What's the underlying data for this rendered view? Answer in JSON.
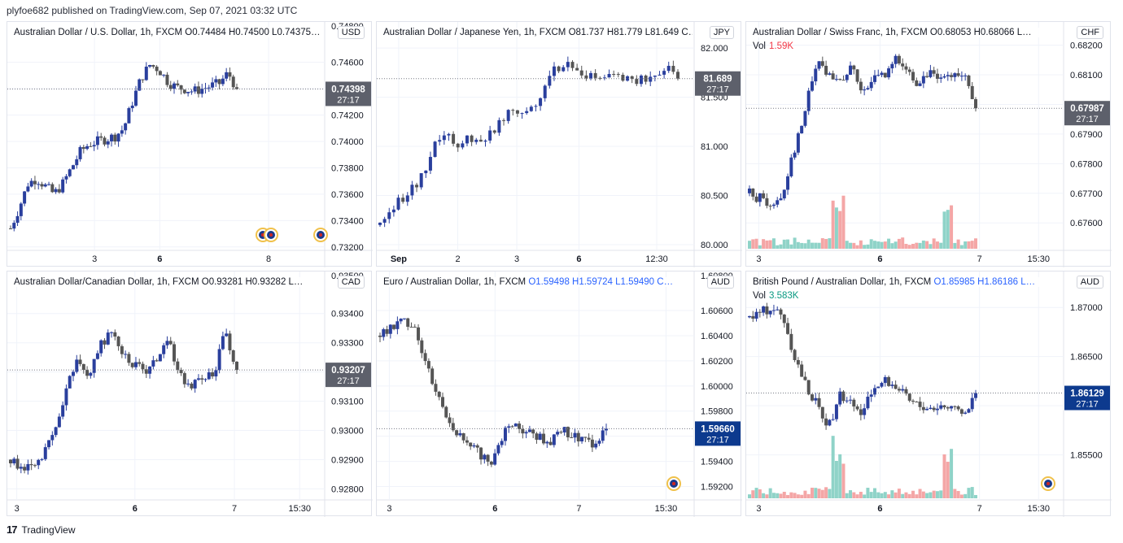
{
  "header": {
    "text": "plyfoe682 published on TradingView.com, Sep 07, 2021 03:32 UTC"
  },
  "footer": {
    "logo": "17",
    "brand": "TradingView"
  },
  "colors": {
    "up": "#2a3f9d",
    "down": "#555555",
    "priceLabelDark": "#5d606b",
    "priceLabelBlue": "#0d3a8e",
    "volUp": "#8fd3c8",
    "volDown": "#f4a6a6",
    "grid": "#f0f3fa"
  },
  "panels": [
    {
      "id": "audusd",
      "legend": {
        "name": "Australian Dollar / U.S. Dollar, 1h, FXCM",
        "ohlc": "O0.74484  H0.74500  L0.74375…"
      },
      "currency": "USD",
      "chart_data": {
        "type": "candlestick",
        "yticks": [
          "0.74600",
          "0.74400",
          "0.74200",
          "0.74000",
          "0.73800",
          "0.73600",
          "0.73400",
          "0.73200"
        ],
        "yhead": "0.74800",
        "ylim": [
          0.7318,
          0.7482
        ],
        "xticks": [
          {
            "label": "3",
            "pos": 0.27
          },
          {
            "label": "6",
            "pos": 0.48,
            "bold": true
          },
          {
            "label": "8",
            "pos": 0.83
          }
        ],
        "last_price": 0.74398,
        "last_label": "0.74398",
        "countdown": "27:17",
        "label_style": "dark",
        "path": [
          0.7334,
          0.735,
          0.7368,
          0.7372,
          0.7366,
          0.736,
          0.7368,
          0.738,
          0.7392,
          0.7398,
          0.74,
          0.7402,
          0.7404,
          0.741,
          0.743,
          0.7448,
          0.7458,
          0.7455,
          0.7446,
          0.7441,
          0.744,
          0.7438,
          0.744,
          0.7442,
          0.7444,
          0.7452,
          0.744
        ],
        "with_volume": false
      }
    },
    {
      "id": "audjpy",
      "legend": {
        "name": "Australian Dollar / Japanese Yen, 1h, FXCM",
        "ohlc": "O81.737  H81.779  L81.649  C…"
      },
      "currency": "JPY",
      "chart_data": {
        "type": "candlestick",
        "yticks": [
          "82.000",
          "81.500",
          "81.000",
          "80.500",
          "80.000"
        ],
        "ylim": [
          79.95,
          82.15
        ],
        "xticks": [
          {
            "label": "Sep",
            "pos": 0.06,
            "bold": true
          },
          {
            "label": "2",
            "pos": 0.25
          },
          {
            "label": "3",
            "pos": 0.44
          },
          {
            "label": "6",
            "pos": 0.64,
            "bold": true
          },
          {
            "label": "12:30",
            "pos": 0.89
          }
        ],
        "last_price": 81.689,
        "last_label": "81.689",
        "countdown": "27:17",
        "label_style": "dark",
        "path": [
          80.2,
          80.4,
          80.5,
          80.62,
          80.95,
          81.15,
          81.0,
          81.1,
          81.05,
          81.2,
          81.4,
          81.35,
          81.42,
          81.7,
          81.85,
          81.78,
          81.7,
          81.68,
          81.72,
          81.7,
          81.68,
          81.69,
          81.8,
          81.69
        ],
        "with_volume": false
      }
    },
    {
      "id": "audchf",
      "legend": {
        "name": "Australian Dollar / Swiss Franc, 1h, FXCM",
        "ohlc": "O0.68053  H0.68066  L…"
      },
      "volume": {
        "label": "Vol",
        "value": "1.59K"
      },
      "currency": "CHF",
      "chart_data": {
        "type": "candlestick",
        "yticks": [
          "0.68200",
          "0.68100",
          "0.68000",
          "0.67900",
          "0.67800",
          "0.67700",
          "0.67600"
        ],
        "ylim": [
          0.6751,
          0.6824
        ],
        "xticks": [
          {
            "label": "3",
            "pos": 0.03
          },
          {
            "label": "6",
            "pos": 0.42,
            "bold": true
          },
          {
            "label": "7",
            "pos": 0.74
          },
          {
            "label": "15:30",
            "pos": 0.93
          }
        ],
        "last_price": 0.67987,
        "last_label": "0.67987",
        "countdown": "27:17",
        "label_style": "dark",
        "path": [
          0.677,
          0.6768,
          0.6765,
          0.677,
          0.6785,
          0.68,
          0.6815,
          0.681,
          0.6808,
          0.6812,
          0.6805,
          0.6808,
          0.681,
          0.6815,
          0.681,
          0.6806,
          0.6812,
          0.6808,
          0.681,
          0.6811,
          0.6799
        ],
        "with_volume": true
      }
    },
    {
      "id": "audcad",
      "legend": {
        "name": "Australian Dollar/Canadian Dollar, 1h, FXCM",
        "ohlc": "O0.93281  H0.93282  L…"
      },
      "currency": "CAD",
      "chart_data": {
        "type": "candlestick",
        "yticks": [
          "0.93400",
          "0.93300",
          "0.93200",
          "0.93100",
          "0.93000",
          "0.92900",
          "0.92800"
        ],
        "yhead": "0.93500",
        "ylim": [
          0.92765,
          0.93505
        ],
        "xticks": [
          {
            "label": "3",
            "pos": 0.02
          },
          {
            "label": "6",
            "pos": 0.4,
            "bold": true
          },
          {
            "label": "7",
            "pos": 0.72
          },
          {
            "label": "15:30",
            "pos": 0.93
          }
        ],
        "last_price": 0.93207,
        "last_label": "0.93207",
        "countdown": "27:17",
        "label_style": "dark",
        "path": [
          0.929,
          0.9288,
          0.9286,
          0.9292,
          0.93,
          0.9315,
          0.9325,
          0.9318,
          0.933,
          0.9334,
          0.9326,
          0.9322,
          0.932,
          0.9325,
          0.933,
          0.9318,
          0.9316,
          0.9318,
          0.932,
          0.9335,
          0.932
        ],
        "with_volume": false
      }
    },
    {
      "id": "euraud",
      "legend": {
        "name": "Euro / Australian Dollar, 1h, FXCM",
        "ohlc": "O1.59498  H1.59724  L1.59490  C…"
      },
      "currency": "AUD",
      "chart_data": {
        "type": "candlestick",
        "yticks": [
          "1.60600",
          "1.60400",
          "1.60200",
          "1.60000",
          "1.59800",
          "1.59600",
          "1.59400",
          "1.59200"
        ],
        "yhead": "1.60800",
        "ylim": [
          1.591,
          1.6082
        ],
        "xticks": [
          {
            "label": "3",
            "pos": 0.03
          },
          {
            "label": "6",
            "pos": 0.37,
            "bold": true
          },
          {
            "label": "7",
            "pos": 0.64
          },
          {
            "label": "15:30",
            "pos": 0.92
          }
        ],
        "last_price": 1.5966,
        "last_label": "1.59660",
        "countdown": "27:17",
        "label_style": "blue",
        "path": [
          1.604,
          1.6045,
          1.6052,
          1.605,
          1.602,
          1.5995,
          1.5975,
          1.596,
          1.595,
          1.5945,
          1.594,
          1.5965,
          1.597,
          1.5962,
          1.596,
          1.5955,
          1.5965,
          1.596,
          1.5958,
          1.595,
          1.5966
        ],
        "with_volume": false
      }
    },
    {
      "id": "gbpaud",
      "legend": {
        "name": "British Pound / Australian Dollar, 1h, FXCM",
        "ohlc": "O1.85985  H1.86186  L…"
      },
      "volume": {
        "label": "Vol",
        "value": "3.583K"
      },
      "currency": "AUD",
      "chart_data": {
        "type": "candlestick",
        "yticks": [
          "1.87000",
          "1.86500",
          "1.86000",
          "1.85500"
        ],
        "ylim": [
          1.8505,
          1.8725
        ],
        "xticks": [
          {
            "label": "3",
            "pos": 0.03
          },
          {
            "label": "6",
            "pos": 0.42,
            "bold": true
          },
          {
            "label": "7",
            "pos": 0.74
          },
          {
            "label": "15:30",
            "pos": 0.93
          }
        ],
        "last_price": 1.86129,
        "last_label": "1.86129",
        "countdown": "27:17",
        "label_style": "blue",
        "path": [
          1.869,
          1.8695,
          1.87,
          1.869,
          1.865,
          1.862,
          1.86,
          1.858,
          1.861,
          1.86,
          1.859,
          1.862,
          1.8625,
          1.862,
          1.8605,
          1.86,
          1.8598,
          1.86,
          1.8595,
          1.859,
          1.8613
        ],
        "with_volume": true
      }
    }
  ]
}
